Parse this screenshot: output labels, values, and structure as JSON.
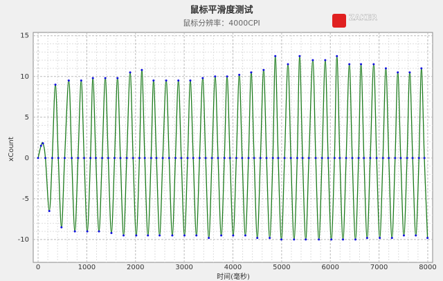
{
  "chart_data": {
    "type": "line",
    "title": "鼠标平滑度测试",
    "subtitle": "鼠标分辨率：4000CPI",
    "x_label": "时间(毫秒)",
    "y_label": "xCount",
    "watermark": "ZAKER",
    "line_color": "#1a7a1a",
    "marker_color": "#1010e0",
    "grid": true,
    "xlim": [
      -100,
      8100
    ],
    "ylim": [
      -12.8,
      15.4
    ],
    "xticks": [
      0,
      1000,
      2000,
      3000,
      4000,
      5000,
      6000,
      7000,
      8000
    ],
    "yticks": [
      -10,
      -5,
      0,
      5,
      10,
      15
    ],
    "x": [
      0,
      60,
      100,
      150,
      230,
      290,
      355,
      415,
      480,
      545,
      630,
      690,
      755,
      820,
      885,
      945,
      1010,
      1075,
      1125,
      1185,
      1250,
      1315,
      1380,
      1440,
      1505,
      1570,
      1630,
      1690,
      1755,
      1820,
      1890,
      1950,
      2015,
      2080,
      2130,
      2190,
      2255,
      2320,
      2370,
      2430,
      2495,
      2560,
      2630,
      2690,
      2755,
      2820,
      2880,
      2940,
      3005,
      3070,
      3125,
      3185,
      3250,
      3315,
      3380,
      3440,
      3505,
      3570,
      3635,
      3695,
      3760,
      3825,
      3880,
      3940,
      4005,
      4070,
      4130,
      4190,
      4255,
      4320,
      4375,
      4435,
      4500,
      4565,
      4630,
      4690,
      4755,
      4820,
      4870,
      4930,
      4995,
      5060,
      5130,
      5190,
      5255,
      5320,
      5370,
      5430,
      5495,
      5560,
      5640,
      5700,
      5765,
      5830,
      5895,
      5955,
      6020,
      6085,
      6135,
      6195,
      6260,
      6325,
      6390,
      6450,
      6515,
      6580,
      6630,
      6690,
      6755,
      6820,
      6890,
      6950,
      7015,
      7080,
      7140,
      7200,
      7265,
      7330,
      7385,
      7445,
      7510,
      7575,
      7630,
      7690,
      7755,
      7820,
      7870,
      7930,
      7995
    ],
    "values": [
      0,
      1.5,
      1.8,
      0,
      -6.5,
      0,
      9,
      0,
      -8.5,
      0,
      9.5,
      0,
      -9,
      0,
      9.5,
      0,
      -9,
      0,
      9.8,
      0,
      -9,
      0,
      9.8,
      0,
      -9.2,
      0,
      9.8,
      0,
      -9.5,
      0,
      10.5,
      0,
      -9.5,
      0,
      10.8,
      0,
      -9.5,
      0,
      9.5,
      0,
      -9.5,
      0,
      9.5,
      0,
      -9.5,
      0,
      9.5,
      0,
      -9.5,
      0,
      9.5,
      0,
      -9.5,
      0,
      9.8,
      0,
      -9.8,
      0,
      10,
      0,
      -9.5,
      0,
      10,
      0,
      -9.5,
      0,
      10.2,
      0,
      -9.5,
      0,
      10.5,
      0,
      -9.8,
      0,
      10.8,
      0,
      -9.8,
      0,
      12.5,
      0,
      -10,
      0,
      11.5,
      0,
      -10,
      0,
      12.5,
      0,
      -10,
      0,
      12,
      0,
      -10,
      0,
      12,
      0,
      -10,
      0,
      12.5,
      0,
      -10,
      0,
      11.5,
      0,
      -10,
      0,
      11.5,
      0,
      -9.8,
      0,
      11.5,
      0,
      -9.8,
      0,
      11,
      0,
      -9.8,
      0,
      10.5,
      0,
      -9.5,
      0,
      10.5,
      0,
      -9.5,
      0,
      11,
      0,
      -9.8
    ]
  }
}
